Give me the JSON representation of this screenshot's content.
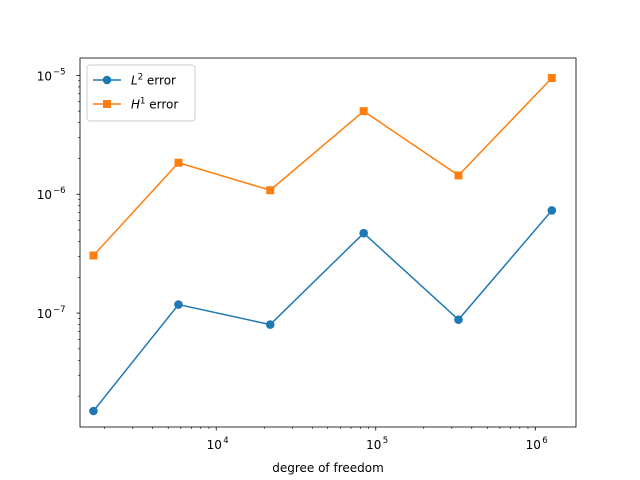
{
  "chart_data": {
    "type": "line",
    "xlabel": "degree of freedom",
    "ylabel": "",
    "xscale": "log",
    "yscale": "log",
    "xlim": [
      1400,
      1800000
    ],
    "ylim": [
      1.1e-08,
      1.4e-05
    ],
    "grid": false,
    "legend_position": "top-left",
    "x_ticks": [
      {
        "value": 10000,
        "base": "10",
        "exp": "4"
      },
      {
        "value": 100000,
        "base": "10",
        "exp": "5"
      },
      {
        "value": 1000000,
        "base": "10",
        "exp": "6"
      }
    ],
    "y_ticks": [
      {
        "value": 1e-07,
        "base": "10",
        "exp": "−7"
      },
      {
        "value": 1e-06,
        "base": "10",
        "exp": "−6"
      },
      {
        "value": 1e-05,
        "base": "10",
        "exp": "−5"
      }
    ],
    "x": [
      1700,
      5800,
      21800,
      84000,
      330000,
      1270000
    ],
    "series": [
      {
        "name": "L² error",
        "name_base": "L",
        "name_sup": "2",
        "name_rest": " error",
        "marker": "circle",
        "color": "#1f77b4",
        "values": [
          1.5e-08,
          1.18e-07,
          8e-08,
          4.7e-07,
          8.8e-08,
          7.3e-07
        ]
      },
      {
        "name": "H¹ error",
        "name_base": "H",
        "name_sup": "1",
        "name_rest": " error",
        "marker": "square",
        "color": "#ff7f0e",
        "values": [
          3.05e-07,
          1.84e-06,
          1.08e-06,
          5e-06,
          1.44e-06,
          9.5e-06
        ]
      }
    ]
  }
}
